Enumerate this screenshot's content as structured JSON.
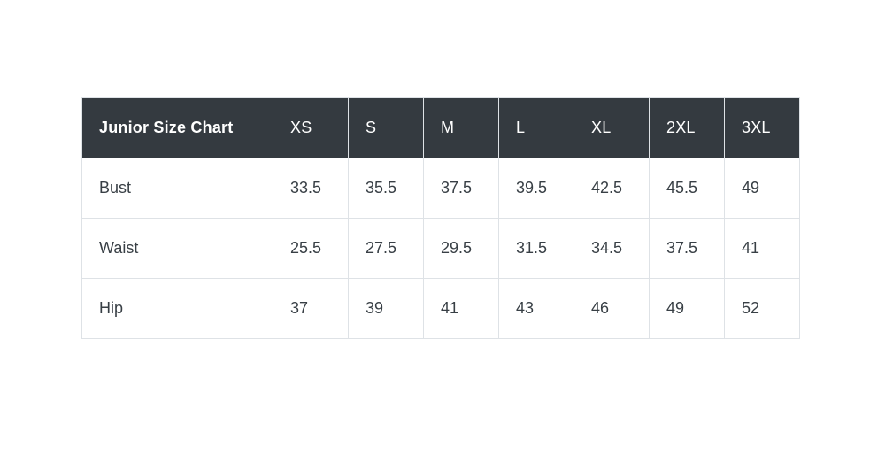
{
  "table": {
    "title": "Junior Size Chart",
    "columns": [
      "XS",
      "S",
      "M",
      "L",
      "XL",
      "2XL",
      "3XL"
    ],
    "rows": [
      {
        "label": "Bust",
        "values": [
          "33.5",
          "35.5",
          "37.5",
          "39.5",
          "42.5",
          "45.5",
          "49"
        ]
      },
      {
        "label": "Waist",
        "values": [
          "25.5",
          "27.5",
          "29.5",
          "31.5",
          "34.5",
          "37.5",
          "41"
        ]
      },
      {
        "label": "Hip",
        "values": [
          "37",
          "39",
          "41",
          "43",
          "46",
          "49",
          "52"
        ]
      }
    ],
    "colors": {
      "header_bg": "#343a40",
      "header_text": "#ffffff",
      "body_text": "#383f45",
      "border": "#dee2e6",
      "page_bg": "#ffffff"
    }
  },
  "chart_data": {
    "type": "table",
    "title": "Junior Size Chart",
    "categories": [
      "XS",
      "S",
      "M",
      "L",
      "XL",
      "2XL",
      "3XL"
    ],
    "series": [
      {
        "name": "Bust",
        "values": [
          33.5,
          35.5,
          37.5,
          39.5,
          42.5,
          45.5,
          49
        ]
      },
      {
        "name": "Waist",
        "values": [
          25.5,
          27.5,
          29.5,
          31.5,
          34.5,
          37.5,
          41
        ]
      },
      {
        "name": "Hip",
        "values": [
          37,
          39,
          41,
          43,
          46,
          49,
          52
        ]
      }
    ]
  }
}
